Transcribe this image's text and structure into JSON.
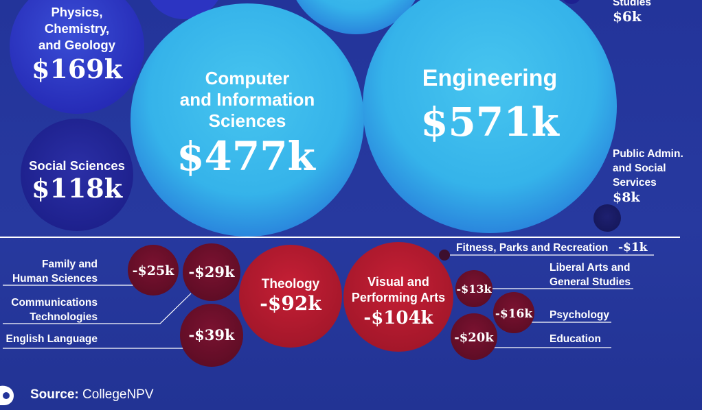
{
  "colors": {
    "background": "#23349a",
    "positive_dark": "#2a2fb8",
    "positive_light": "#3fc6ef",
    "negative": "#b3192e",
    "negative_dark": "#5a0c22",
    "text": "#ffffff"
  },
  "chart_data": {
    "type": "bubble",
    "unit_note": "Net value in thousands of dollars",
    "series": [
      {
        "name": "Positive",
        "points": [
          {
            "category": "Studies",
            "value": 6,
            "value_label": "$6k"
          },
          {
            "category": "Physics, Chemistry, and Geology",
            "value": 169,
            "value_label": "$169k"
          },
          {
            "category": "Social Sciences",
            "value": 118,
            "value_label": "$118k"
          },
          {
            "category": "Computer and Information Sciences",
            "value": 477,
            "value_label": "$477k"
          },
          {
            "category": "Engineering",
            "value": 571,
            "value_label": "$571k"
          },
          {
            "category": "Public Admin. and Social Services",
            "value": 8,
            "value_label": "$8k"
          }
        ]
      },
      {
        "name": "Negative",
        "points": [
          {
            "category": "Family and Human Sciences",
            "value": -25,
            "value_label": "-$25k"
          },
          {
            "category": "Communications Technologies",
            "value": -29,
            "value_label": "-$29k"
          },
          {
            "category": "English Language",
            "value": -39,
            "value_label": "-$39k"
          },
          {
            "category": "Theology",
            "value": -92,
            "value_label": "-$92k"
          },
          {
            "category": "Visual and Performing Arts",
            "value": -104,
            "value_label": "-$104k"
          },
          {
            "category": "Fitness, Parks and Recreation",
            "value": -1,
            "value_label": "-$1k"
          },
          {
            "category": "Liberal Arts and General Studies",
            "value": -13,
            "value_label": "-$13k"
          },
          {
            "category": "Psychology",
            "value": -16,
            "value_label": "-$16k"
          },
          {
            "category": "Education",
            "value": -20,
            "value_label": "-$20k"
          }
        ]
      }
    ]
  },
  "labels": {
    "studies": {
      "name": "Studies",
      "value": "$6k"
    },
    "physics": {
      "l1": "Physics,",
      "l2": "Chemistry,",
      "l3": "and Geology",
      "value": "$169k"
    },
    "social": {
      "l1": "Social Sciences",
      "value": "$118k"
    },
    "computer": {
      "l1": "Computer",
      "l2": "and Information",
      "l3": "Sciences",
      "value": "$477k"
    },
    "engineering": {
      "l1": "Engineering",
      "value": "$571k"
    },
    "public": {
      "l1": "Public Admin.",
      "l2": "and Social",
      "l3": "Services",
      "value": "$8k"
    },
    "family": {
      "l1": "Family and",
      "l2": "Human Sciences",
      "value": "-$25k"
    },
    "comm": {
      "l1": "Communications",
      "l2": "Technologies",
      "value": "-$29k"
    },
    "english": {
      "l1": "English Language",
      "value": "-$39k"
    },
    "theology": {
      "l1": "Theology",
      "value": "-$92k"
    },
    "visual": {
      "l1": "Visual and",
      "l2": "Performing Arts",
      "value": "-$104k"
    },
    "fitness": {
      "l1": "Fitness, Parks and Recreation",
      "value": "-$1k"
    },
    "liberal": {
      "l1": "Liberal Arts and",
      "l2": "General Studies",
      "value": "-$13k"
    },
    "psychology": {
      "l1": "Psychology",
      "value": "-$16k"
    },
    "education": {
      "l1": "Education",
      "value": "-$20k"
    }
  },
  "source": {
    "label": "Source:",
    "name": "CollegeNPV"
  }
}
